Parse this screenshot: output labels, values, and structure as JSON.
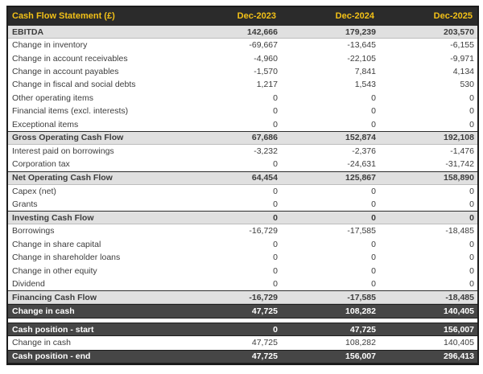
{
  "table": {
    "title": "Cash Flow Statement (£)",
    "columns": [
      "Dec-2023",
      "Dec-2024",
      "Dec-2025"
    ],
    "colors": {
      "header_bg": "#2b2b2b",
      "header_text": "#f3c117",
      "subtotal_bg": "#e0e0e0",
      "dark_bg": "#464646",
      "dark_text": "#ffffff",
      "body_text": "#3c3c3c",
      "border": "#1c1c1c"
    },
    "rows": [
      {
        "label": "EBITDA",
        "values": [
          "142,666",
          "179,239",
          "203,570"
        ],
        "style": "subtotal"
      },
      {
        "label": "Change in inventory",
        "values": [
          "-69,667",
          "-13,645",
          "-6,155"
        ],
        "style": "normal"
      },
      {
        "label": "Change in account receivables",
        "values": [
          "-4,960",
          "-22,105",
          "-9,971"
        ],
        "style": "normal"
      },
      {
        "label": "Change in account payables",
        "values": [
          "-1,570",
          "7,841",
          "4,134"
        ],
        "style": "normal"
      },
      {
        "label": "Change in fiscal and social debts",
        "values": [
          "1,217",
          "1,543",
          "530"
        ],
        "style": "normal"
      },
      {
        "label": "Other operating items",
        "values": [
          "0",
          "0",
          "0"
        ],
        "style": "normal"
      },
      {
        "label": "Financial items (excl. interests)",
        "values": [
          "0",
          "0",
          "0"
        ],
        "style": "normal"
      },
      {
        "label": "Exceptional items",
        "values": [
          "0",
          "0",
          "0"
        ],
        "style": "normal"
      },
      {
        "label": "Gross Operating Cash Flow",
        "values": [
          "67,686",
          "152,874",
          "192,108"
        ],
        "style": "subtotal"
      },
      {
        "label": "Interest paid on borrowings",
        "values": [
          "-3,232",
          "-2,376",
          "-1,476"
        ],
        "style": "normal"
      },
      {
        "label": "Corporation tax",
        "values": [
          "0",
          "-24,631",
          "-31,742"
        ],
        "style": "normal"
      },
      {
        "label": "Net Operating Cash Flow",
        "values": [
          "64,454",
          "125,867",
          "158,890"
        ],
        "style": "subtotal"
      },
      {
        "label": "Capex (net)",
        "values": [
          "0",
          "0",
          "0"
        ],
        "style": "normal"
      },
      {
        "label": "Grants",
        "values": [
          "0",
          "0",
          "0"
        ],
        "style": "normal"
      },
      {
        "label": "Investing Cash Flow",
        "values": [
          "0",
          "0",
          "0"
        ],
        "style": "subtotal"
      },
      {
        "label": "Borrowings",
        "values": [
          "-16,729",
          "-17,585",
          "-18,485"
        ],
        "style": "normal"
      },
      {
        "label": "Change in share capital",
        "values": [
          "0",
          "0",
          "0"
        ],
        "style": "normal"
      },
      {
        "label": "Change in shareholder loans",
        "values": [
          "0",
          "0",
          "0"
        ],
        "style": "normal"
      },
      {
        "label": "Change in other equity",
        "values": [
          "0",
          "0",
          "0"
        ],
        "style": "normal"
      },
      {
        "label": "Dividend",
        "values": [
          "0",
          "0",
          "0"
        ],
        "style": "normal"
      },
      {
        "label": "Financing Cash Flow",
        "values": [
          "-16,729",
          "-17,585",
          "-18,485"
        ],
        "style": "subtotal"
      },
      {
        "label": "Change in cash",
        "values": [
          "47,725",
          "108,282",
          "140,405"
        ],
        "style": "dark"
      },
      {
        "style": "spacer"
      },
      {
        "label": "Cash position - start",
        "values": [
          "0",
          "47,725",
          "156,007"
        ],
        "style": "dark"
      },
      {
        "label": "Change in cash",
        "values": [
          "47,725",
          "108,282",
          "140,405"
        ],
        "style": "normal"
      },
      {
        "label": "Cash position - end",
        "values": [
          "47,725",
          "156,007",
          "296,413"
        ],
        "style": "dark"
      }
    ]
  }
}
